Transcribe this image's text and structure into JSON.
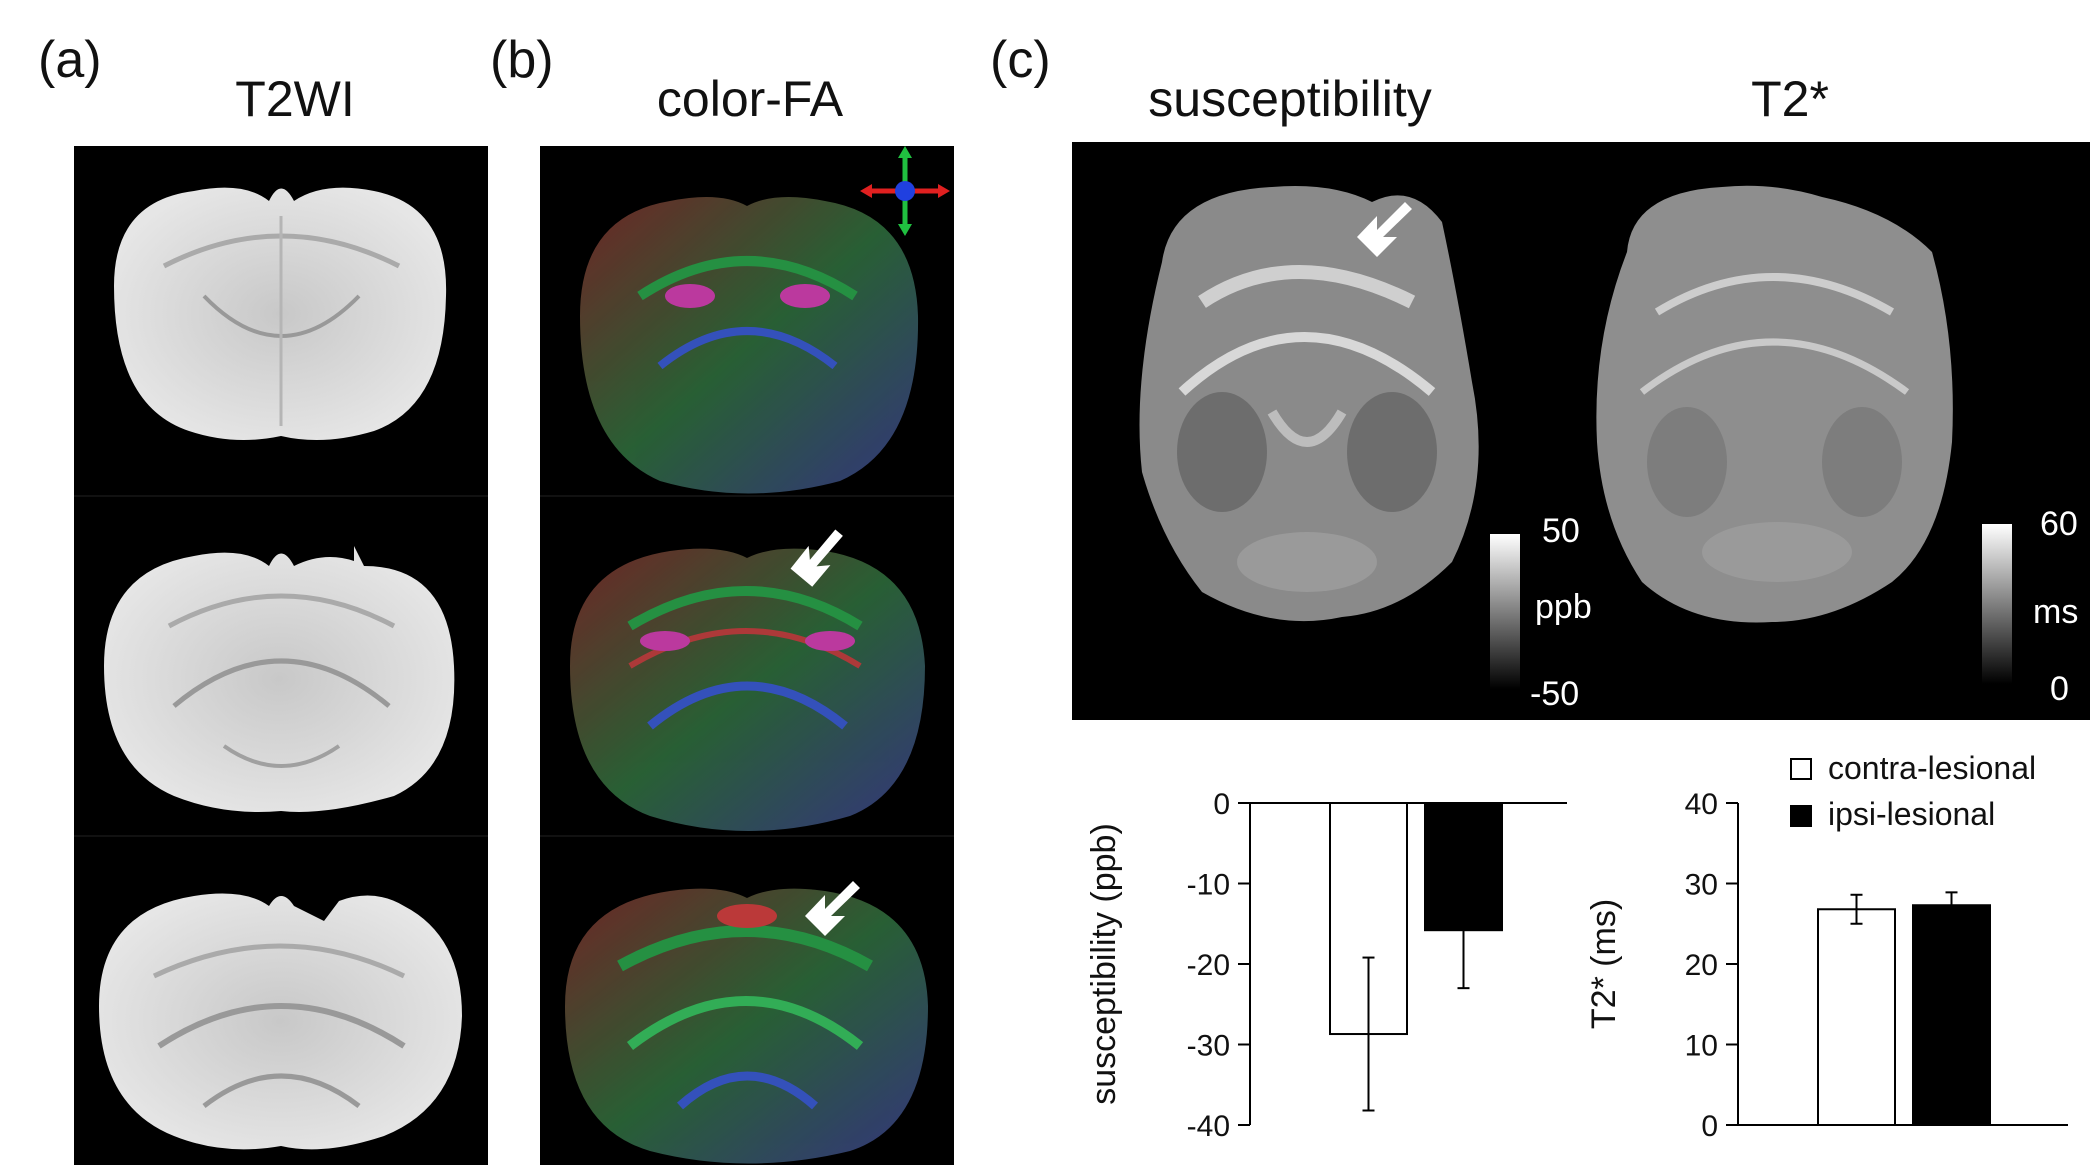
{
  "panels": {
    "a": {
      "letter": "(a)",
      "title": "T2WI"
    },
    "b": {
      "letter": "(b)",
      "title": "color-FA"
    },
    "c": {
      "letter": "(c)",
      "title_left": "susceptibility",
      "title_right": "T2*"
    }
  },
  "colorbars": {
    "susceptibility": {
      "max": "50",
      "unit": "ppb",
      "min": "-50"
    },
    "t2star": {
      "max": "60",
      "unit": "ms",
      "min": "0"
    }
  },
  "legend": {
    "contra": "contra-lesional",
    "ipsi": "ipsi-lesional"
  },
  "colors": {
    "contra_fill": "#ffffff",
    "ipsi_fill": "#000000",
    "fa_red": "#e02020",
    "fa_green": "#20c040",
    "fa_blue": "#2040e0"
  },
  "chart_data": [
    {
      "type": "bar",
      "categories": [
        "contra-lesional",
        "ipsi-lesional"
      ],
      "values": [
        -28.7,
        -15.8
      ],
      "errors": [
        9.5,
        7.2
      ],
      "ylabel": "susceptibility (ppb)",
      "xlabel": "",
      "ylim": [
        -40,
        0
      ],
      "yticks": [
        "0",
        "-10",
        "-20",
        "-30",
        "-40"
      ]
    },
    {
      "type": "bar",
      "categories": [
        "contra-lesional",
        "ipsi-lesional"
      ],
      "values": [
        26.8,
        27.3
      ],
      "errors": [
        1.8,
        1.6
      ],
      "ylabel": "T2* (ms)",
      "xlabel": "",
      "ylim": [
        0,
        40
      ],
      "yticks": [
        "40",
        "30",
        "20",
        "10",
        "0"
      ]
    }
  ]
}
